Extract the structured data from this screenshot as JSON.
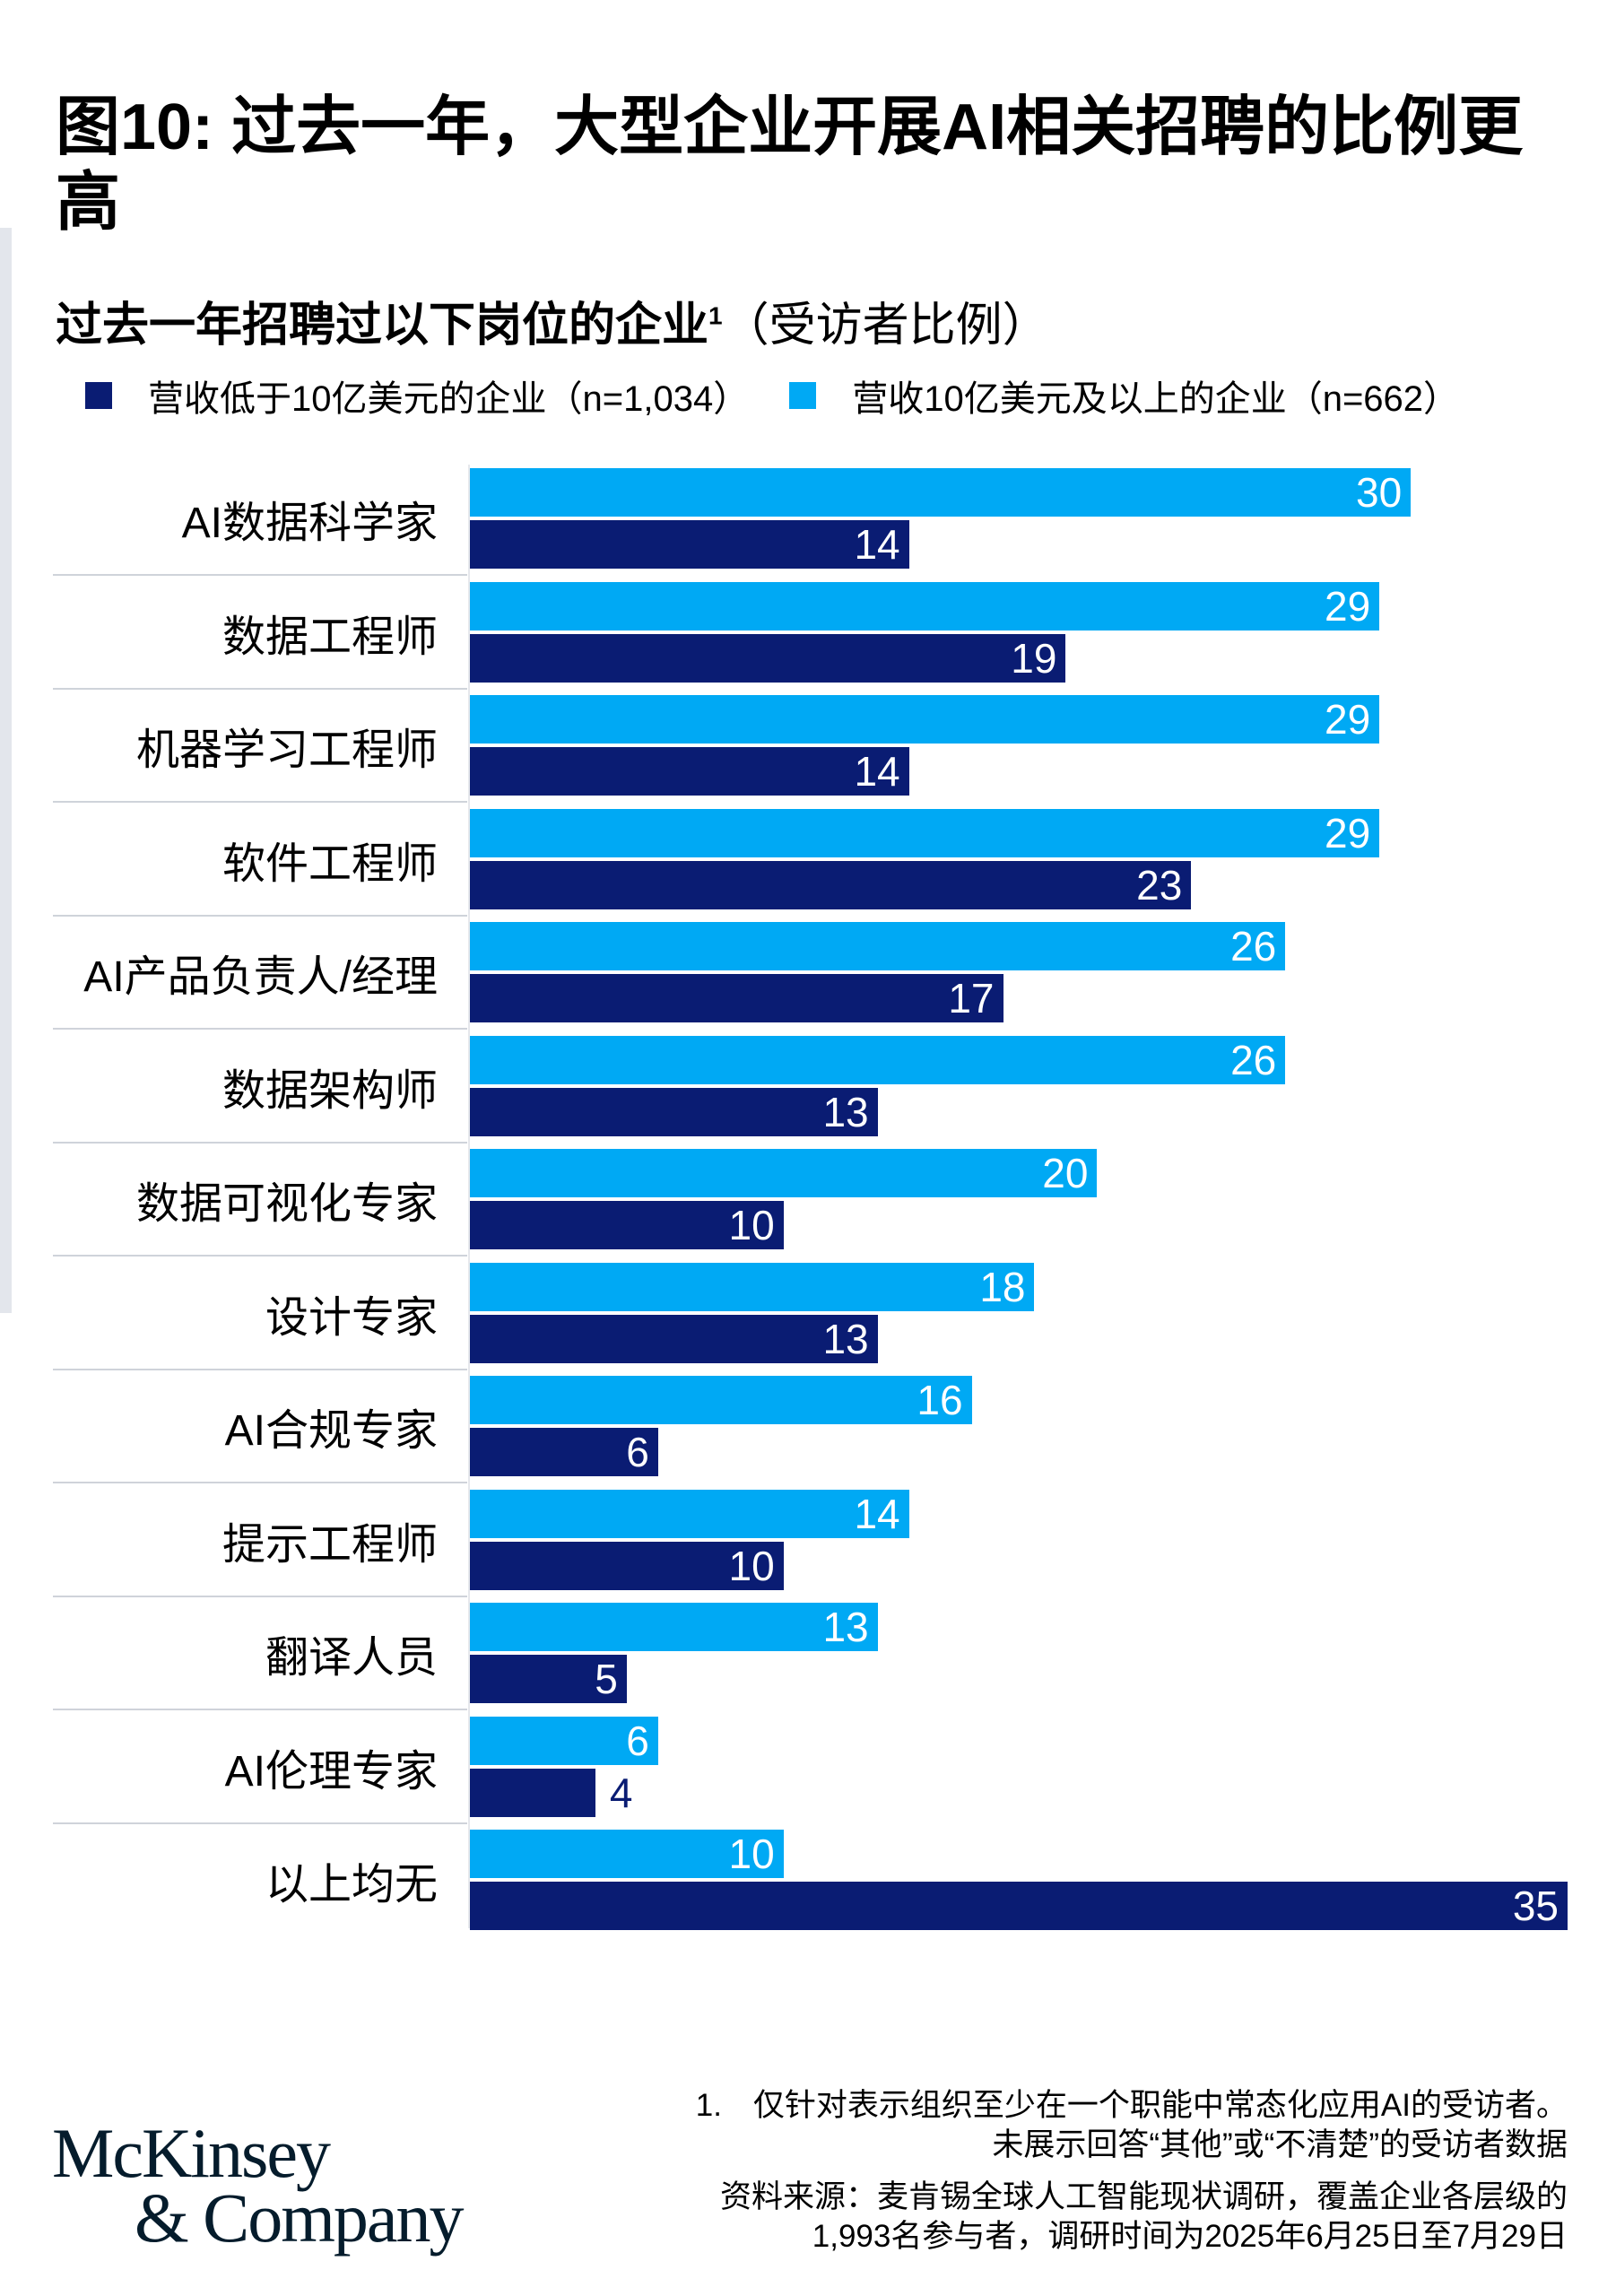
{
  "title": "图10: 过去一年，大型企业开展AI相关招聘的比例更高",
  "subtitle": "过去一年招聘过以下岗位的企业",
  "subtitle_sup": "1",
  "subtitle_paren": "（受访者比例）",
  "colors": {
    "small": "#0a1c73",
    "large": "#00a9f4"
  },
  "chart_data": {
    "type": "bar",
    "orientation": "horizontal",
    "categories": [
      "AI数据科学家",
      "数据工程师",
      "机器学习工程师",
      "软件工程师",
      "AI产品负责人/经理",
      "数据架构师",
      "数据可视化专家",
      "设计专家",
      "AI合规专家",
      "提示工程师",
      "翻译人员",
      "AI伦理专家",
      "以上均无"
    ],
    "series": [
      {
        "name": "营收10亿美元及以上的企业（n=662）",
        "color": "#00a9f4",
        "values": [
          30,
          29,
          29,
          29,
          26,
          26,
          20,
          18,
          16,
          14,
          13,
          6,
          10
        ]
      },
      {
        "name": "营收低于10亿美元的企业（n=1,034）",
        "color": "#0a1c73",
        "values": [
          14,
          19,
          14,
          23,
          17,
          13,
          10,
          13,
          6,
          10,
          5,
          4,
          35
        ]
      }
    ],
    "xlim": [
      0,
      35
    ],
    "legend": "top",
    "grid": false
  },
  "legend": {
    "small": "营收低于10亿美元的企业（n=1,034）",
    "large": "营收10亿美元及以上的企业（n=662）"
  },
  "notes": {
    "footnote_line1": "1.　仅针对表示组织至少在一个职能中常态化应用AI的受访者。",
    "footnote_line2": "未展示回答“其他”或“不清楚”的受访者数据",
    "source_line1": "资料来源：麦肯锡全球人工智能现状调研，覆盖企业各层级的",
    "source_line2": "1,993名参与者，调研时间为2025年6月25日至7月29日"
  },
  "logo": {
    "line1": "McKinsey",
    "line2": "& Company"
  }
}
